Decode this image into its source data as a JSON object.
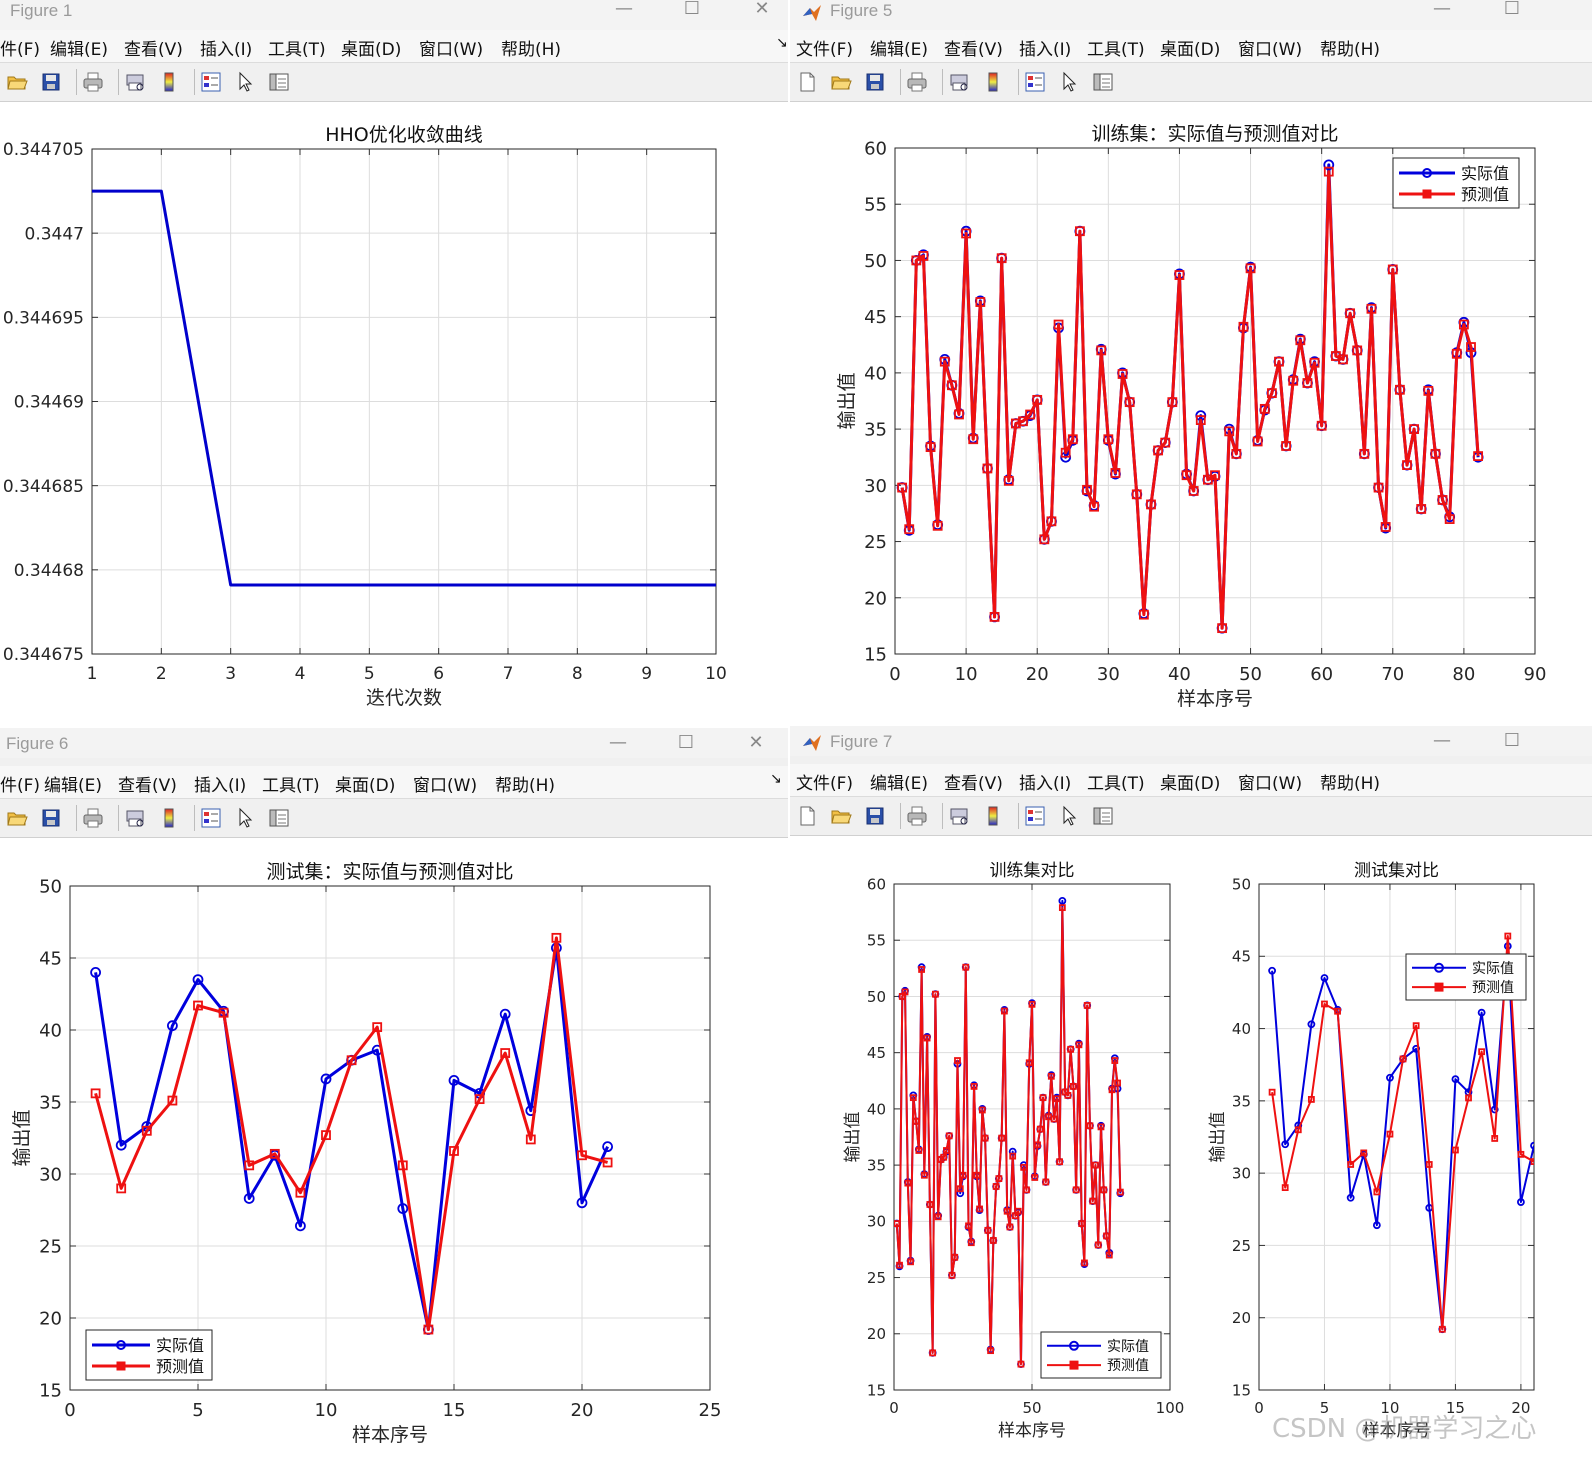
{
  "windows": [
    {
      "id": "fig1",
      "title": "Figure 1",
      "menu_partial": true
    },
    {
      "id": "fig5",
      "title": "Figure 5",
      "menu_partial": false
    },
    {
      "id": "fig6",
      "title": "Figure 6",
      "menu_partial": true
    },
    {
      "id": "fig7",
      "title": "Figure 7",
      "menu_partial": false
    }
  ],
  "menu": [
    "文件(F)",
    "编辑(E)",
    "查看(V)",
    "插入(I)",
    "工具(T)",
    "桌面(D)",
    "窗口(W)",
    "帮助(H)"
  ],
  "menu_partial_first": "件(F)",
  "toolbar_icons": [
    "new-file-icon",
    "open-folder-icon",
    "save-icon",
    "print-icon",
    "print-preview-icon",
    "colorbar-icon",
    "legend-icon",
    "pointer-icon",
    "property-panel-icon"
  ],
  "watermark": "CSDN @机器学习之心",
  "colors": {
    "actual": "#0000dd",
    "predicted": "#ee1111",
    "hho": "#0000cc",
    "grid": "#dddddd"
  },
  "chart_data": [
    {
      "id": "hho",
      "type": "line",
      "title": "HHO优化收敛曲线",
      "xlabel": "迭代次数",
      "ylabel": "",
      "x": [
        1,
        2,
        3,
        4,
        5,
        6,
        7,
        8,
        9,
        10
      ],
      "series": [
        {
          "values": [
            0.3447025,
            0.3447025,
            0.3446791,
            0.3446791,
            0.3446791,
            0.3446791,
            0.3446791,
            0.3446791,
            0.3446791,
            0.3446791
          ]
        }
      ],
      "xlim": [
        1,
        10
      ],
      "ylim": [
        0.344675,
        0.344705
      ],
      "xticks": [
        "1",
        "2",
        "3",
        "4",
        "5",
        "6",
        "7",
        "8",
        "9",
        "10"
      ],
      "yticks": [
        "0.344675",
        "0.34468",
        "0.344685",
        "0.34469",
        "0.344695",
        "0.3447",
        "0.344705"
      ],
      "grid": true
    },
    {
      "id": "train",
      "type": "line",
      "title": "训练集：实际值与预测值对比",
      "xlabel": "样本序号",
      "ylabel": "输出值",
      "xlim": [
        0,
        90
      ],
      "ylim": [
        15,
        60
      ],
      "xticks": [
        "0",
        "10",
        "20",
        "30",
        "40",
        "50",
        "60",
        "70",
        "80",
        "90"
      ],
      "yticks": [
        "15",
        "20",
        "25",
        "30",
        "35",
        "40",
        "45",
        "50",
        "55",
        "60"
      ],
      "legend": "top-right",
      "grid": true,
      "series": [
        {
          "name": "实际值",
          "values": [
            29.8,
            26.0,
            50.0,
            50.5,
            33.5,
            26.5,
            41.2,
            38.9,
            36.4,
            52.6,
            34.2,
            46.4,
            31.5,
            18.3,
            50.2,
            30.5,
            35.5,
            35.7,
            36.2,
            37.6,
            25.2,
            26.8,
            44.0,
            32.5,
            34.0,
            52.6,
            29.5,
            28.2,
            42.1,
            34.0,
            31.0,
            40.0,
            37.4,
            29.2,
            18.6,
            28.3,
            33.1,
            33.8,
            37.4,
            48.8,
            31.0,
            29.5,
            36.2,
            30.5,
            30.8,
            17.3,
            35.0,
            32.8,
            44.0,
            49.4,
            34.0,
            36.7,
            38.2,
            41.0,
            33.5,
            39.4,
            43.0,
            39.1,
            41.0,
            35.3,
            58.5,
            41.5,
            41.2,
            45.3,
            42.0,
            32.8,
            45.8,
            29.8,
            26.2,
            49.2,
            38.5,
            31.8,
            35.0,
            27.9,
            38.5,
            32.8,
            28.7,
            27.2,
            41.8,
            44.5,
            41.8,
            32.5
          ]
        },
        {
          "name": "预测值",
          "values": [
            29.8,
            26.1,
            50.0,
            50.4,
            33.4,
            26.4,
            41.0,
            38.9,
            36.3,
            52.4,
            34.1,
            46.3,
            31.5,
            18.3,
            50.2,
            30.4,
            35.5,
            35.7,
            36.3,
            37.6,
            25.2,
            26.8,
            44.3,
            32.9,
            34.1,
            52.6,
            29.6,
            28.1,
            42.0,
            34.1,
            31.1,
            39.9,
            37.4,
            29.2,
            18.5,
            28.3,
            33.1,
            33.8,
            37.4,
            48.7,
            30.9,
            29.5,
            35.8,
            30.5,
            30.9,
            17.3,
            34.8,
            32.8,
            44.1,
            49.3,
            33.9,
            36.8,
            38.2,
            41.0,
            33.5,
            39.3,
            42.9,
            39.1,
            40.9,
            35.3,
            57.9,
            41.5,
            41.2,
            45.3,
            42.0,
            32.8,
            45.7,
            29.8,
            26.3,
            49.2,
            38.5,
            31.8,
            35.0,
            27.9,
            38.4,
            32.8,
            28.7,
            27.0,
            41.7,
            44.3,
            42.3,
            32.6
          ]
        }
      ]
    },
    {
      "id": "test",
      "type": "line",
      "title": "测试集：实际值与预测值对比",
      "xlabel": "样本序号",
      "ylabel": "输出值",
      "xlim": [
        0,
        25
      ],
      "ylim": [
        15,
        50
      ],
      "xticks": [
        "0",
        "5",
        "10",
        "15",
        "20",
        "25"
      ],
      "yticks": [
        "15",
        "20",
        "25",
        "30",
        "35",
        "40",
        "45",
        "50"
      ],
      "legend": "bottom-left",
      "grid": true,
      "series": [
        {
          "name": "实际值",
          "values": [
            44.0,
            32.0,
            33.3,
            40.3,
            43.5,
            41.3,
            28.3,
            31.3,
            26.4,
            36.6,
            37.9,
            38.6,
            27.6,
            19.2,
            36.5,
            35.6,
            41.1,
            34.4,
            45.7,
            28.0,
            31.9
          ]
        },
        {
          "name": "预测值",
          "values": [
            35.6,
            29.0,
            33.0,
            35.1,
            41.7,
            41.2,
            30.6,
            31.4,
            28.7,
            32.7,
            37.9,
            40.2,
            30.6,
            19.2,
            31.6,
            35.2,
            38.4,
            32.4,
            46.4,
            31.3,
            30.8
          ]
        }
      ]
    },
    {
      "id": "train_small",
      "type": "line",
      "title": "训练集对比",
      "xlabel": "样本序号",
      "ylabel": "输出值",
      "xlim": [
        0,
        100
      ],
      "ylim": [
        15,
        60
      ],
      "xticks": [
        "0",
        "50",
        "100"
      ],
      "yticks": [
        "15",
        "20",
        "25",
        "30",
        "35",
        "40",
        "45",
        "50",
        "55",
        "60"
      ],
      "legend": "bottom-right",
      "grid": true,
      "series_ref": "train"
    },
    {
      "id": "test_small",
      "type": "line",
      "title": "测试集对比",
      "xlabel": "样本序号",
      "ylabel": "输出值",
      "xlim": [
        0,
        21
      ],
      "ylim": [
        15,
        50
      ],
      "xticks": [
        "0",
        "5",
        "10",
        "15",
        "20"
      ],
      "yticks": [
        "15",
        "20",
        "25",
        "30",
        "35",
        "40",
        "45",
        "50"
      ],
      "legend": "top-right",
      "grid": true,
      "series_ref": "test"
    }
  ]
}
